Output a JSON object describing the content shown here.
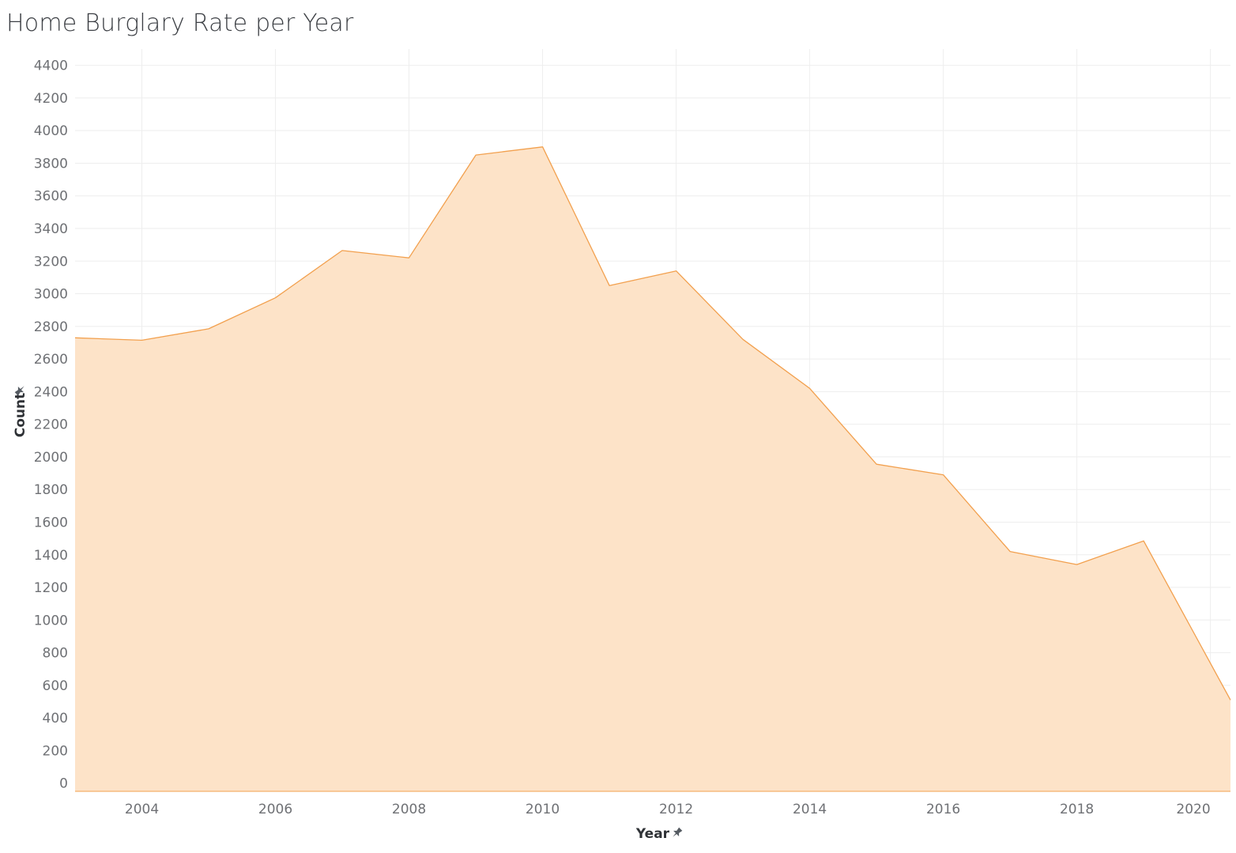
{
  "page": {
    "title": "Home Burglary Rate per Year"
  },
  "chart_data": {
    "type": "area",
    "title": "Home Burglary Rate per Year",
    "xlabel": "Year",
    "ylabel": "Count",
    "x": [
      2003,
      2004,
      2005,
      2006,
      2007,
      2008,
      2009,
      2010,
      2011,
      2012,
      2013,
      2014,
      2015,
      2016,
      2017,
      2018,
      2019,
      2020.3
    ],
    "values": [
      2730,
      2715,
      2785,
      2975,
      3265,
      3220,
      3850,
      3900,
      3050,
      3140,
      2720,
      2420,
      1955,
      1890,
      1420,
      1340,
      1485,
      510
    ],
    "xticks": [
      2004,
      2006,
      2008,
      2010,
      2012,
      2014,
      2016,
      2018,
      2020
    ],
    "yticks": [
      0,
      200,
      400,
      600,
      800,
      1000,
      1200,
      1400,
      1600,
      1800,
      2000,
      2200,
      2400,
      2600,
      2800,
      3000,
      3200,
      3400,
      3600,
      3800,
      4000,
      4200,
      4400
    ],
    "xlim": [
      2003,
      2020.3
    ],
    "ylim": [
      -50,
      4500
    ],
    "grid": true,
    "legend": "none",
    "colors": {
      "fill": "#fde3c8",
      "line": "#f2a04e",
      "grid": "#eeeeee",
      "tick_text": "#6f7175",
      "axis_title": "#2f3236",
      "pin_icon": "#555b62"
    }
  }
}
